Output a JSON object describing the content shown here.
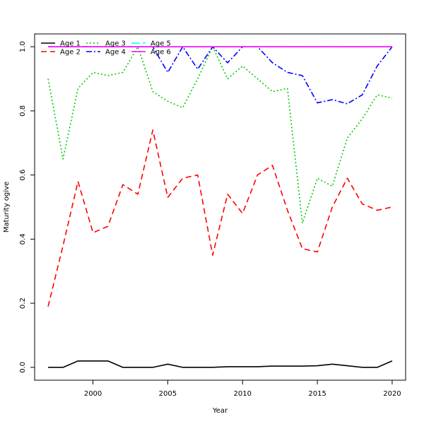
{
  "chart_data": {
    "type": "line",
    "xlabel": "Year",
    "ylabel": "Maturity ogive",
    "xlim": [
      1996.1,
      2020.9
    ],
    "ylim": [
      -0.04,
      1.04
    ],
    "xticks": [
      2000,
      2005,
      2010,
      2015,
      2020
    ],
    "yticks": [
      0.0,
      0.2,
      0.4,
      0.6,
      0.8,
      1.0
    ],
    "legend_position": "top-left",
    "grid": false,
    "x": [
      1997,
      1998,
      1999,
      2000,
      2001,
      2002,
      2003,
      2004,
      2005,
      2006,
      2007,
      2008,
      2009,
      2010,
      2011,
      2012,
      2013,
      2014,
      2015,
      2016,
      2017,
      2018,
      2019,
      2020
    ],
    "series": [
      {
        "name": "Age 1",
        "color": "#000000",
        "dash": "solid",
        "values": [
          0.0,
          0.0,
          0.02,
          0.02,
          0.02,
          0.0,
          0.0,
          0.0,
          0.01,
          0.0,
          0.0,
          0.0,
          0.002,
          0.002,
          0.002,
          0.004,
          0.004,
          0.004,
          0.005,
          0.01,
          0.005,
          0.0,
          0.0,
          0.02
        ]
      },
      {
        "name": "Age 2",
        "color": "#ff0000",
        "dash": "dashed",
        "values": [
          0.19,
          0.38,
          0.58,
          0.42,
          0.44,
          0.57,
          0.54,
          0.74,
          0.53,
          0.59,
          0.6,
          0.35,
          0.54,
          0.48,
          0.6,
          0.63,
          0.49,
          0.37,
          0.36,
          0.5,
          0.59,
          0.51,
          0.49,
          0.5
        ]
      },
      {
        "name": "Age 3",
        "color": "#00cd00",
        "dash": "dotted",
        "values": [
          0.9,
          0.65,
          0.87,
          0.92,
          0.91,
          0.92,
          1.0,
          0.86,
          0.83,
          0.81,
          0.9,
          1.0,
          0.9,
          0.94,
          0.9,
          0.86,
          0.87,
          0.45,
          0.59,
          0.565,
          0.715,
          0.775,
          0.85,
          0.84
        ]
      },
      {
        "name": "Age 4",
        "color": "#0000ff",
        "dash": "dotdash",
        "values": [
          1.0,
          1.0,
          1.0,
          1.0,
          1.0,
          1.0,
          1.0,
          1.0,
          0.92,
          1.0,
          0.93,
          1.0,
          0.95,
          1.0,
          1.0,
          0.95,
          0.92,
          0.91,
          0.825,
          0.835,
          0.822,
          0.85,
          0.94,
          1.0
        ]
      },
      {
        "name": "Age 5",
        "color": "#00ffff",
        "dash": "longdash",
        "values": [
          1.0,
          1.0,
          1.0,
          1.0,
          1.0,
          1.0,
          1.0,
          1.0,
          1.0,
          1.0,
          1.0,
          1.0,
          1.0,
          1.0,
          1.0,
          1.0,
          1.0,
          1.0,
          1.0,
          1.0,
          1.0,
          1.0,
          1.0,
          1.0
        ]
      },
      {
        "name": "Age 6",
        "color": "#ff00ff",
        "dash": "solid",
        "values": [
          1.0,
          1.0,
          1.0,
          1.0,
          1.0,
          1.0,
          1.0,
          1.0,
          1.0,
          1.0,
          1.0,
          1.0,
          1.0,
          1.0,
          1.0,
          1.0,
          1.0,
          1.0,
          1.0,
          1.0,
          1.0,
          1.0,
          1.0,
          1.0
        ]
      }
    ]
  }
}
